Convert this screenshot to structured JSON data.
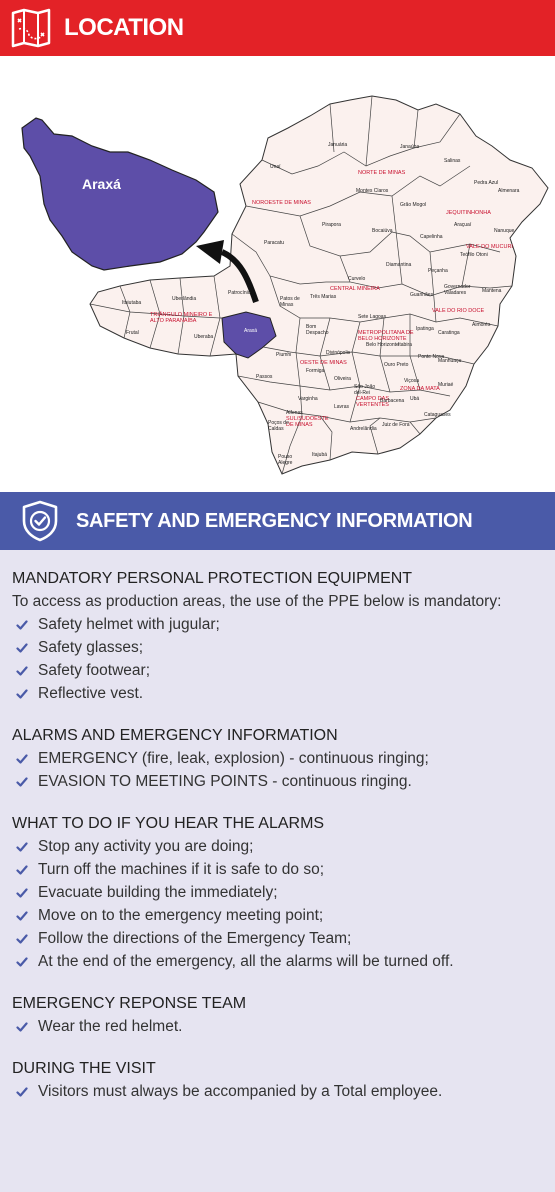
{
  "location": {
    "title": "LOCATION",
    "highlight_label": "Araxá"
  },
  "map": {
    "regions": {
      "noroeste": "NOROESTE DE MINAS",
      "norte": "NORTE DE MINAS",
      "jequitinhonha": "JEQUITINHONHA",
      "mucuri": "VALE DO MUCURI",
      "rio_doce": "VALE DO RIO DOCE",
      "triangulo": "TRIÂNGULO MINEIRO E ALTO PARANAÍBA",
      "central": "CENTRAL MINEIRA",
      "metropolitana": "METROPOLITANA DE BELO HORIZONTE",
      "oeste": "OESTE DE MINAS",
      "zona_mata": "ZONA DA MATA",
      "campo_vertentes": "CAMPO DAS VERTENTES",
      "sul": "SUL/SUDOESTE DE MINAS"
    },
    "cities": [
      "Unaí",
      "Paracatu",
      "Januária",
      "Janaúba",
      "Salinas",
      "Pedra Azul",
      "Almenara",
      "Montes Claros",
      "Grão Mogol",
      "Araçuaí",
      "Nanuque",
      "Pirapora",
      "Bocaiúva",
      "Capelinha",
      "Teófilo Otoni",
      "Diamantina",
      "Peçanha",
      "Governador Valadares",
      "Mantena",
      "Curvelo",
      "Guanhães",
      "Três Marias",
      "Patos de Minas",
      "Patrocínio",
      "Ituiutaba",
      "Uberlândia",
      "Frutal",
      "Uberaba",
      "Araxá",
      "Bom Despacho",
      "Sete Lagoas",
      "Itabira",
      "Aimorés",
      "Caratinga",
      "Ipatinga",
      "Belo Horizonte",
      "Piumhi",
      "Divinópolis",
      "Ponte Nova",
      "Manhuaçu",
      "Formiga",
      "Passos",
      "Oliveira",
      "Ouro Preto",
      "Muriaé",
      "Ubá",
      "Viçosa",
      "Barbacena",
      "São João del-Rei",
      "Lavras",
      "Varginha",
      "Alfenas",
      "Poços de Caldas",
      "Pouso Alegre",
      "Itajubá",
      "Juiz de Fora",
      "Andrelândia",
      "Cataguases"
    ]
  },
  "safety": {
    "title": "SAFETY AND EMERGENCY INFORMATION",
    "ppe": {
      "heading": "MANDATORY PERSONAL PROTECTION EQUIPMENT",
      "intro": "To access as production areas, the use of the PPE below is mandatory:",
      "items": [
        "Safety helmet with jugular;",
        "Safety glasses;",
        "Safety footwear;",
        "Reflective vest."
      ]
    },
    "alarms": {
      "heading": "ALARMS AND EMERGENCY INFORMATION",
      "items": [
        "EMERGENCY (fire, leak, explosion) - continuous ringing;",
        "EVASION TO MEETING POINTS - continuous ringing."
      ]
    },
    "what_to_do": {
      "heading": "WHAT TO DO IF YOU HEAR THE ALARMS",
      "items": [
        "Stop any activity you are doing;",
        "Turn off the machines if it is safe to do so;",
        "Evacuate building the immediately;",
        "Move on to the emergency meeting point;",
        "Follow the directions of the Emergency Team;",
        "At the end of the emergency, all the alarms will be turned off."
      ]
    },
    "team": {
      "heading": "EMERGENCY REPONSE TEAM",
      "items": [
        "Wear the red helmet."
      ]
    },
    "visit": {
      "heading": "DURING THE VISIT",
      "items": [
        "Visitors must always be accompanied by a Total employee."
      ]
    }
  },
  "colors": {
    "location_banner": "#e32227",
    "safety_banner": "#4a5aa8",
    "highlight_region": "#5d4ea8",
    "map_fill": "#fbf1ee",
    "info_bg": "#e6e4f1",
    "check": "#4a5aa8"
  }
}
